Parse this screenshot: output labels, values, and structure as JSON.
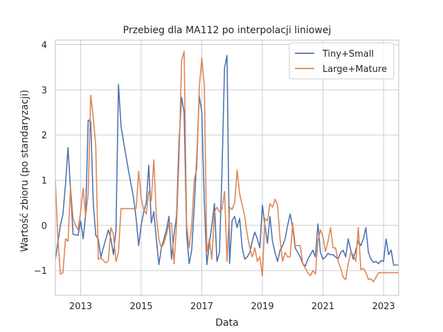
{
  "chart_data": {
    "type": "line",
    "title": "Przebieg dla MA112 po interpolacji liniowej",
    "xlabel": "Data",
    "ylabel": "Wartość zbioru (po standaryzacji)",
    "xlim": [
      "2012-03",
      "2023-07"
    ],
    "ylim": [
      -1.55,
      4.1
    ],
    "x_ticks": [
      "2013",
      "2015",
      "2017",
      "2019",
      "2021",
      "2023"
    ],
    "y_ticks": [
      -1,
      0,
      1,
      2,
      3,
      4
    ],
    "grid": true,
    "legend_position": "top-right",
    "series": [
      {
        "name": "Tiny+Small",
        "color": "#4c72b0",
        "points": [
          [
            "2012-03",
            -0.75
          ],
          [
            "2012-05",
            0.0
          ],
          [
            "2012-06",
            0.25
          ],
          [
            "2012-07",
            0.9
          ],
          [
            "2012-08",
            1.72
          ],
          [
            "2012-09",
            0.8
          ],
          [
            "2012-10",
            -0.2
          ],
          [
            "2012-12",
            -0.22
          ],
          [
            "2013-01",
            0.1
          ],
          [
            "2013-02",
            -0.3
          ],
          [
            "2013-03",
            0.25
          ],
          [
            "2013-04",
            2.33
          ],
          [
            "2013-05",
            2.3
          ],
          [
            "2013-06",
            0.5
          ],
          [
            "2013-07",
            -0.22
          ],
          [
            "2013-08",
            -0.3
          ],
          [
            "2013-09",
            -0.7
          ],
          [
            "2013-10",
            -0.5
          ],
          [
            "2013-11",
            -0.3
          ],
          [
            "2013-12",
            -0.1
          ],
          [
            "2014-01",
            -0.3
          ],
          [
            "2014-02",
            -0.65
          ],
          [
            "2014-03",
            -0.1
          ],
          [
            "2014-04",
            3.12
          ],
          [
            "2014-05",
            2.2
          ],
          [
            "2014-06",
            1.85
          ],
          [
            "2014-08",
            1.2
          ],
          [
            "2014-10",
            0.6
          ],
          [
            "2014-11",
            0.15
          ],
          [
            "2014-12",
            -0.45
          ],
          [
            "2015-01",
            0.0
          ],
          [
            "2015-02",
            0.3
          ],
          [
            "2015-03",
            0.5
          ],
          [
            "2015-04",
            1.33
          ],
          [
            "2015-05",
            0.05
          ],
          [
            "2015-06",
            0.3
          ],
          [
            "2015-07",
            -0.3
          ],
          [
            "2015-08",
            -0.87
          ],
          [
            "2015-09",
            -0.5
          ],
          [
            "2015-10",
            -0.3
          ],
          [
            "2015-11",
            -0.1
          ],
          [
            "2015-12",
            0.2
          ],
          [
            "2016-01",
            -0.75
          ],
          [
            "2016-02",
            -0.2
          ],
          [
            "2016-03",
            0.2
          ],
          [
            "2016-04",
            1.9
          ],
          [
            "2016-05",
            2.83
          ],
          [
            "2016-06",
            2.5
          ],
          [
            "2016-07",
            -0.2
          ],
          [
            "2016-08",
            -0.85
          ],
          [
            "2016-09",
            -0.55
          ],
          [
            "2016-10",
            0.4
          ],
          [
            "2016-11",
            1.5
          ],
          [
            "2016-12",
            2.87
          ],
          [
            "2017-01",
            2.5
          ],
          [
            "2017-02",
            0.5
          ],
          [
            "2017-03",
            -0.87
          ],
          [
            "2017-04",
            -0.4
          ],
          [
            "2017-05",
            0.0
          ],
          [
            "2017-06",
            0.48
          ],
          [
            "2017-07",
            -0.8
          ],
          [
            "2017-08",
            -0.6
          ],
          [
            "2017-09",
            1.2
          ],
          [
            "2017-10",
            3.48
          ],
          [
            "2017-11",
            3.76
          ],
          [
            "2017-12",
            -0.85
          ],
          [
            "2018-01",
            0.1
          ],
          [
            "2018-02",
            0.2
          ],
          [
            "2018-03",
            -0.05
          ],
          [
            "2018-04",
            0.15
          ],
          [
            "2018-05",
            -0.5
          ],
          [
            "2018-06",
            -0.75
          ],
          [
            "2018-07",
            -0.7
          ],
          [
            "2018-08",
            -0.6
          ],
          [
            "2018-09",
            -0.35
          ],
          [
            "2018-10",
            -0.15
          ],
          [
            "2018-11",
            -0.3
          ],
          [
            "2018-12",
            -0.5
          ],
          [
            "2019-01",
            0.45
          ],
          [
            "2019-02",
            0.0
          ],
          [
            "2019-03",
            -0.4
          ],
          [
            "2019-04",
            0.2
          ],
          [
            "2019-05",
            -0.35
          ],
          [
            "2019-06",
            -0.6
          ],
          [
            "2019-07",
            -0.8
          ],
          [
            "2019-08",
            -0.55
          ],
          [
            "2019-09",
            -0.45
          ],
          [
            "2019-10",
            -0.3
          ],
          [
            "2019-11",
            0.0
          ],
          [
            "2019-12",
            0.25
          ],
          [
            "2020-01",
            -0.05
          ],
          [
            "2020-02",
            -0.5
          ],
          [
            "2020-03",
            -0.6
          ],
          [
            "2020-04",
            -0.7
          ],
          [
            "2020-05",
            -0.85
          ],
          [
            "2020-06",
            -0.9
          ],
          [
            "2020-07",
            -0.75
          ],
          [
            "2020-08",
            -0.65
          ],
          [
            "2020-09",
            -0.55
          ],
          [
            "2020-10",
            -0.7
          ],
          [
            "2020-11",
            0.03
          ],
          [
            "2020-12",
            -0.6
          ],
          [
            "2021-01",
            -0.75
          ],
          [
            "2021-02",
            -0.7
          ],
          [
            "2021-03",
            -0.62
          ],
          [
            "2021-04",
            -0.65
          ],
          [
            "2021-05",
            -0.65
          ],
          [
            "2021-06",
            -0.7
          ],
          [
            "2021-07",
            -0.75
          ],
          [
            "2021-08",
            -0.6
          ],
          [
            "2021-09",
            -0.55
          ],
          [
            "2021-10",
            -0.7
          ],
          [
            "2021-11",
            -0.3
          ],
          [
            "2021-12",
            -0.55
          ],
          [
            "2022-01",
            -0.75
          ],
          [
            "2022-02",
            -0.55
          ],
          [
            "2022-03",
            -0.35
          ],
          [
            "2022-04",
            -0.45
          ],
          [
            "2022-05",
            -0.3
          ],
          [
            "2022-06",
            -0.05
          ],
          [
            "2022-07",
            -0.6
          ],
          [
            "2022-08",
            -0.75
          ],
          [
            "2022-09",
            -0.82
          ],
          [
            "2022-10",
            -0.8
          ],
          [
            "2022-11",
            -0.85
          ],
          [
            "2022-12",
            -0.78
          ],
          [
            "2023-01",
            -0.8
          ],
          [
            "2023-02",
            -0.3
          ],
          [
            "2023-03",
            -0.65
          ],
          [
            "2023-04",
            -0.55
          ],
          [
            "2023-05",
            -0.88
          ],
          [
            "2023-07",
            -0.88
          ]
        ]
      },
      {
        "name": "Large+Mature",
        "color": "#dd8452",
        "points": [
          [
            "2012-03",
            1.0
          ],
          [
            "2012-04",
            -0.3
          ],
          [
            "2012-05",
            -1.08
          ],
          [
            "2012-06",
            -1.05
          ],
          [
            "2012-07",
            -0.3
          ],
          [
            "2012-08",
            -0.35
          ],
          [
            "2012-09",
            0.85
          ],
          [
            "2012-10",
            0.15
          ],
          [
            "2012-11",
            0.0
          ],
          [
            "2012-12",
            -0.1
          ],
          [
            "2013-01",
            0.3
          ],
          [
            "2013-02",
            0.82
          ],
          [
            "2013-03",
            0.2
          ],
          [
            "2013-04",
            0.7
          ],
          [
            "2013-05",
            2.88
          ],
          [
            "2013-06",
            2.4
          ],
          [
            "2013-07",
            1.75
          ],
          [
            "2013-08",
            -0.75
          ],
          [
            "2013-09",
            -0.72
          ],
          [
            "2013-10",
            -0.78
          ],
          [
            "2013-11",
            -0.83
          ],
          [
            "2013-12",
            -0.78
          ],
          [
            "2014-01",
            -0.05
          ],
          [
            "2014-02",
            -0.2
          ],
          [
            "2014-03",
            -0.8
          ],
          [
            "2014-04",
            -0.6
          ],
          [
            "2014-05",
            0.37
          ],
          [
            "2014-07",
            0.37
          ],
          [
            "2014-09",
            0.37
          ],
          [
            "2014-11",
            0.37
          ],
          [
            "2014-12",
            1.2
          ],
          [
            "2015-01",
            0.6
          ],
          [
            "2015-02",
            0.35
          ],
          [
            "2015-03",
            0.25
          ],
          [
            "2015-04",
            0.75
          ],
          [
            "2015-05",
            0.55
          ],
          [
            "2015-06",
            1.45
          ],
          [
            "2015-07",
            0.2
          ],
          [
            "2015-08",
            -0.3
          ],
          [
            "2015-09",
            -0.5
          ],
          [
            "2015-10",
            -0.4
          ],
          [
            "2015-11",
            -0.2
          ],
          [
            "2015-12",
            0.05
          ],
          [
            "2016-01",
            0.05
          ],
          [
            "2016-02",
            -0.85
          ],
          [
            "2016-03",
            0.0
          ],
          [
            "2016-04",
            1.5
          ],
          [
            "2016-05",
            3.65
          ],
          [
            "2016-06",
            3.85
          ],
          [
            "2016-07",
            0.0
          ],
          [
            "2016-08",
            -0.5
          ],
          [
            "2016-09",
            0.0
          ],
          [
            "2016-10",
            1.0
          ],
          [
            "2016-11",
            1.25
          ],
          [
            "2016-12",
            3.05
          ],
          [
            "2017-01",
            3.7
          ],
          [
            "2017-02",
            3.1
          ],
          [
            "2017-03",
            -0.6
          ],
          [
            "2017-04",
            -0.3
          ],
          [
            "2017-05",
            -0.75
          ],
          [
            "2017-06",
            0.3
          ],
          [
            "2017-07",
            0.4
          ],
          [
            "2017-08",
            0.3
          ],
          [
            "2017-09",
            0.35
          ],
          [
            "2017-10",
            0.75
          ],
          [
            "2017-11",
            -0.8
          ],
          [
            "2017-12",
            0.4
          ],
          [
            "2018-01",
            0.35
          ],
          [
            "2018-02",
            0.5
          ],
          [
            "2018-03",
            1.22
          ],
          [
            "2018-04",
            0.7
          ],
          [
            "2018-05",
            0.45
          ],
          [
            "2018-06",
            0.2
          ],
          [
            "2018-07",
            -0.2
          ],
          [
            "2018-08",
            -0.5
          ],
          [
            "2018-09",
            -0.7
          ],
          [
            "2018-10",
            -0.5
          ],
          [
            "2018-11",
            -0.8
          ],
          [
            "2018-12",
            -0.7
          ],
          [
            "2019-01",
            -1.12
          ],
          [
            "2019-02",
            0.15
          ],
          [
            "2019-03",
            0.1
          ],
          [
            "2019-04",
            0.48
          ],
          [
            "2019-05",
            0.4
          ],
          [
            "2019-06",
            0.58
          ],
          [
            "2019-07",
            0.45
          ],
          [
            "2019-08",
            -0.3
          ],
          [
            "2019-09",
            -0.8
          ],
          [
            "2019-10",
            -0.6
          ],
          [
            "2019-11",
            -0.7
          ],
          [
            "2019-12",
            -0.7
          ],
          [
            "2020-01",
            0.05
          ],
          [
            "2020-02",
            -0.45
          ],
          [
            "2020-03",
            -0.45
          ],
          [
            "2020-04",
            -0.45
          ],
          [
            "2020-05",
            -0.85
          ],
          [
            "2020-06",
            -0.95
          ],
          [
            "2020-07",
            -1.05
          ],
          [
            "2020-08",
            -1.12
          ],
          [
            "2020-09",
            -1.0
          ],
          [
            "2020-10",
            -1.08
          ],
          [
            "2020-11",
            -0.35
          ],
          [
            "2020-12",
            -0.1
          ],
          [
            "2021-01",
            -0.25
          ],
          [
            "2021-02",
            -0.58
          ],
          [
            "2021-03",
            -0.35
          ],
          [
            "2021-04",
            -0.05
          ],
          [
            "2021-05",
            -0.5
          ],
          [
            "2021-06",
            -0.5
          ],
          [
            "2021-07",
            -0.8
          ],
          [
            "2021-08",
            -0.95
          ],
          [
            "2021-09",
            -1.15
          ],
          [
            "2021-10",
            -1.2
          ],
          [
            "2021-11",
            -0.85
          ],
          [
            "2021-12",
            -0.6
          ],
          [
            "2022-01",
            -0.65
          ],
          [
            "2022-02",
            -0.8
          ],
          [
            "2022-03",
            -0.05
          ],
          [
            "2022-04",
            -0.98
          ],
          [
            "2022-05",
            -0.95
          ],
          [
            "2022-06",
            -1.05
          ],
          [
            "2022-07",
            -1.2
          ],
          [
            "2022-08",
            -1.18
          ],
          [
            "2022-09",
            -1.25
          ],
          [
            "2022-10",
            -1.15
          ],
          [
            "2022-11",
            -1.05
          ],
          [
            "2023-02",
            -1.05
          ],
          [
            "2023-07",
            -1.05
          ]
        ]
      }
    ]
  }
}
